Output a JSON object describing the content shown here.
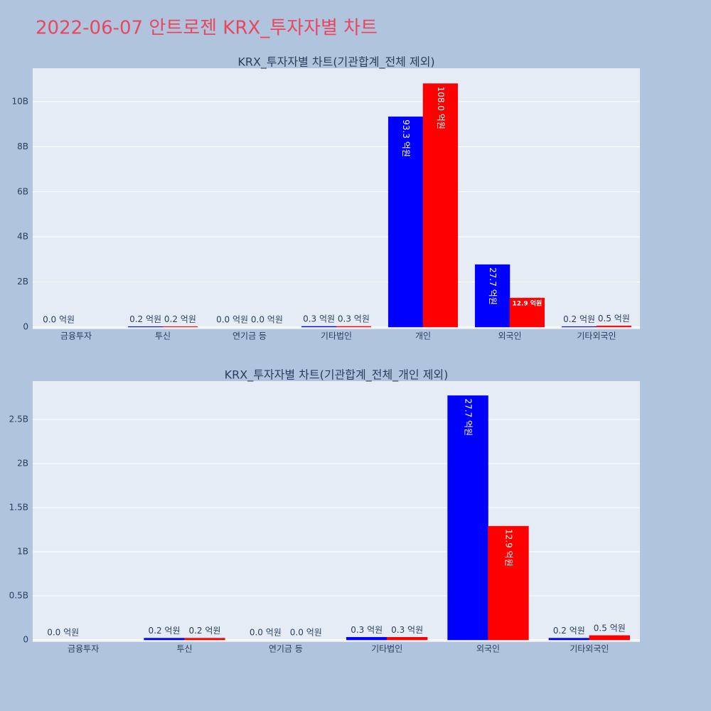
{
  "title": "2022-06-07 안트로젠 KRX_투자자별 차트",
  "chart_data": [
    {
      "type": "bar",
      "title": "KRX_투자자별 차트(기관합계_전체 제외)",
      "categories": [
        "금융투자",
        "투신",
        "연기금 등",
        "기타법인",
        "개인",
        "외국인",
        "기타외국인"
      ],
      "series": [
        {
          "color": "#0000ff",
          "values": [
            0,
            20000000,
            0,
            30000000,
            9330000000,
            2770000000,
            20000000
          ],
          "value_labels": [
            "0.0 억원",
            "0.2 억원",
            "0.0 억원",
            "0.3 억원",
            "93.3 억원",
            "27.7 억원",
            "0.2 억원"
          ]
        },
        {
          "color": "#ff0000",
          "values": [
            null,
            20000000,
            0,
            30000000,
            10800000000,
            1290000000,
            50000000
          ],
          "value_labels": [
            null,
            "0.2 억원",
            "0.0 억원",
            "0.3 억원",
            "108.0 억원",
            "12.9 억원",
            "0.5 억원"
          ]
        }
      ],
      "ylim": [
        -95000000,
        11480000000
      ],
      "yticks": [
        0,
        {
          "value": 2000000000,
          "label": "2B"
        },
        {
          "value": 4000000000,
          "label": "4B"
        },
        {
          "value": 6000000000,
          "label": "6B"
        },
        {
          "value": 8000000000,
          "label": "8B"
        },
        {
          "value": 10000000000,
          "label": "10B"
        }
      ],
      "grid": true
    },
    {
      "type": "bar",
      "title": "KRX_투자자별 차트(기관합계_전체_개인 제외)",
      "categories": [
        "금융투자",
        "투신",
        "연기금 등",
        "기타법인",
        "외국인",
        "기타외국인"
      ],
      "series": [
        {
          "color": "#0000ff",
          "values": [
            0,
            20000000,
            0,
            30000000,
            2770000000,
            20000000
          ],
          "value_labels": [
            "0.0 억원",
            "0.2 억원",
            "0.0 억원",
            "0.3 억원",
            "27.7 억원",
            "0.2 억원"
          ]
        },
        {
          "color": "#ff0000",
          "values": [
            null,
            20000000,
            0,
            30000000,
            1290000000,
            50000000
          ],
          "value_labels": [
            null,
            "0.2 억원",
            "0.0 억원",
            "0.3 억원",
            "12.9 억원",
            "0.5 억원"
          ]
        }
      ],
      "ylim": [
        -24000000,
        2935000000
      ],
      "yticks": [
        0,
        {
          "value": 500000000,
          "label": "0.5B"
        },
        {
          "value": 1000000000,
          "label": "1B"
        },
        {
          "value": 1500000000,
          "label": "1.5B"
        },
        {
          "value": 2000000000,
          "label": "2B"
        },
        {
          "value": 2500000000,
          "label": "2.5B"
        }
      ],
      "grid": true
    }
  ]
}
